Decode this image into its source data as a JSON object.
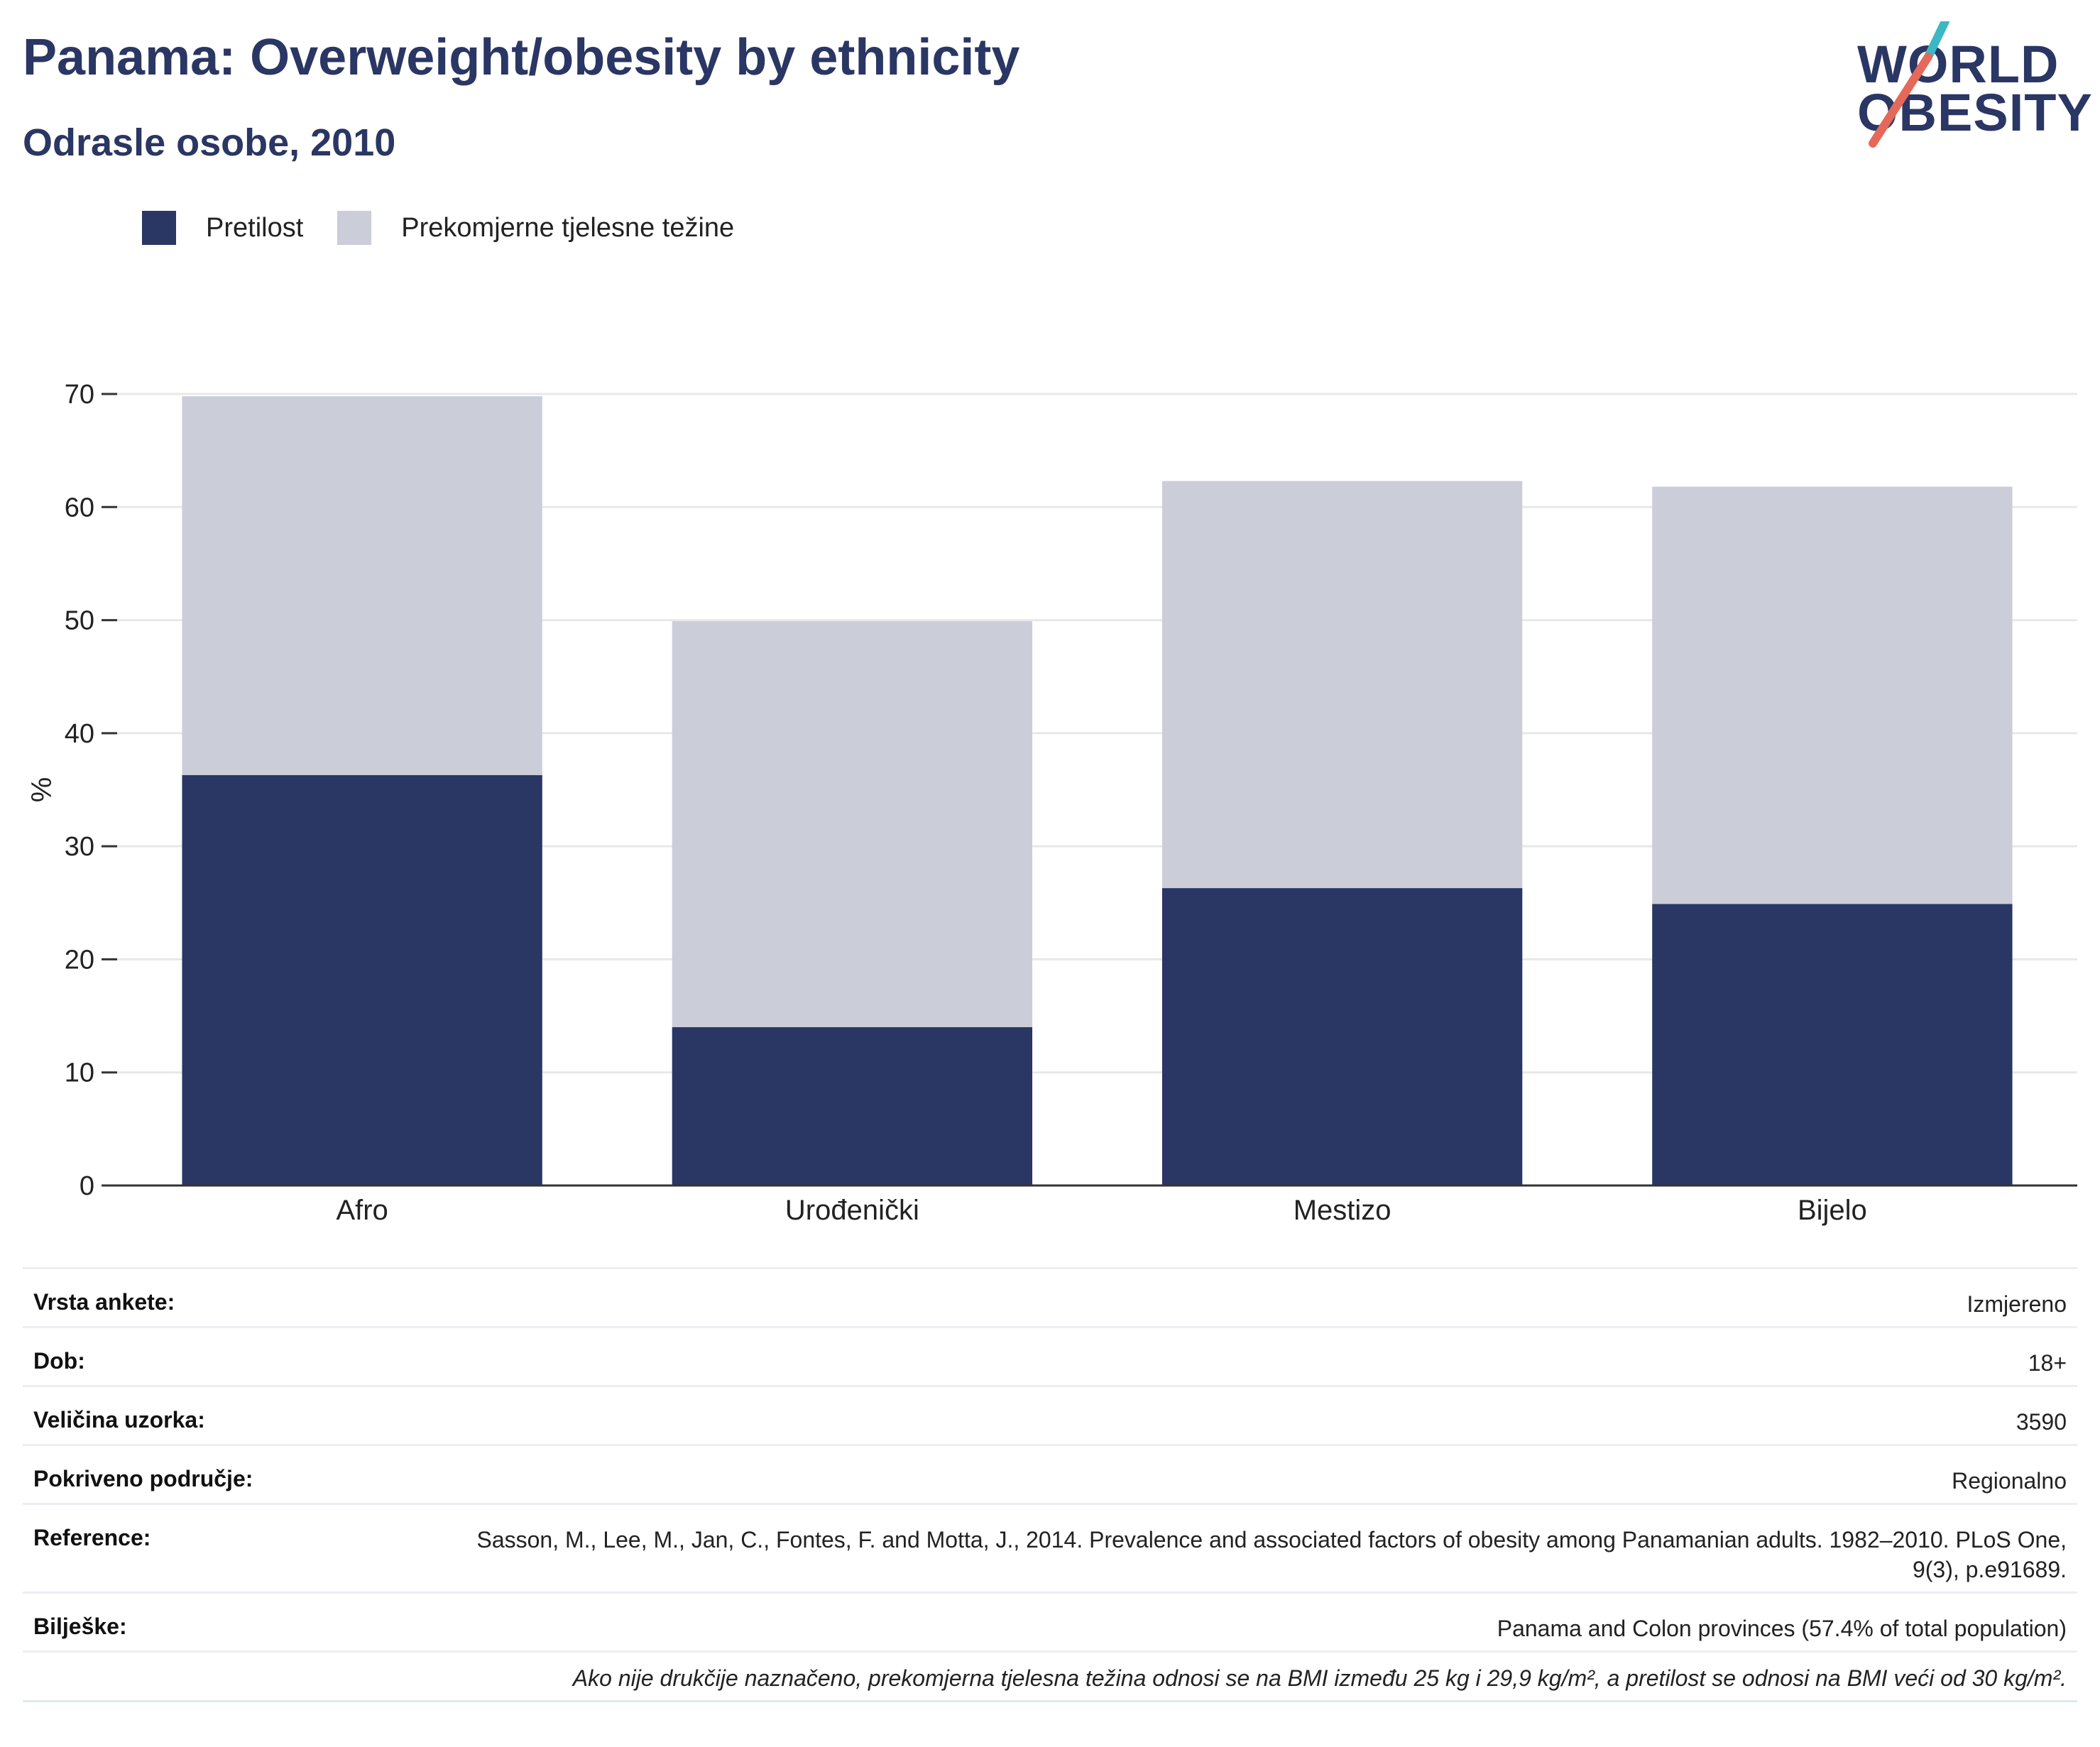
{
  "header": {
    "title": "Panama: Overweight/obesity by ethnicity",
    "subtitle": "Odrasle osobe, 2010"
  },
  "logo": {
    "line1": "WORLD",
    "line2": "OBESITY",
    "accent_colors": [
      "#3bb8c3",
      "#e4695a"
    ]
  },
  "colors": {
    "obesity": "#2a3663",
    "overweight": "#cbcdd9",
    "axis": "#333333",
    "grid": "#e8e8e8",
    "title": "#2a3663"
  },
  "legend": [
    {
      "label": "Pretilost",
      "color": "#2a3663"
    },
    {
      "label": "Prekomjerne tjelesne težine",
      "color": "#cbcdd9"
    }
  ],
  "chart_data": {
    "type": "bar",
    "stacked": true,
    "categories": [
      "Afro",
      "Urođenički",
      "Mestizo",
      "Bijelo"
    ],
    "series": [
      {
        "name": "Pretilost",
        "values": [
          36.3,
          14.0,
          26.3,
          24.9
        ]
      },
      {
        "name": "Prekomjerne tjelesne težine",
        "values": [
          33.5,
          35.9,
          36.0,
          36.9
        ]
      }
    ],
    "ylabel": "%",
    "ylim": [
      0,
      70
    ],
    "yticks": [
      0,
      10,
      20,
      30,
      40,
      50,
      60,
      70
    ],
    "grid": true,
    "legend_position": "top-left"
  },
  "meta": {
    "survey_type": {
      "label": "Vrsta ankete:",
      "value": "Izmjereno"
    },
    "age": {
      "label": "Dob:",
      "value": "18+"
    },
    "sample_size": {
      "label": "Veličina uzorka:",
      "value": "3590"
    },
    "area_covered": {
      "label": "Pokriveno područje:",
      "value": "Regionalno"
    },
    "references": {
      "label": "Reference:",
      "value": "Sasson, M., Lee, M., Jan, C., Fontes, F. and Motta, J., 2014. Prevalence and associated factors of obesity among Panamanian adults. 1982–2010. PLoS One, 9(3), p.e91689."
    },
    "notes": {
      "label": "Bilješke:",
      "value": "Panama and Colon provinces (57.4% of total population)"
    },
    "definition": "Ako nije drukčije naznačeno, prekomjerna tjelesna težina odnosi se na BMI između 25 kg i 29,9 kg/m², a pretilost se odnosi na BMI veći od 30 kg/m²."
  }
}
